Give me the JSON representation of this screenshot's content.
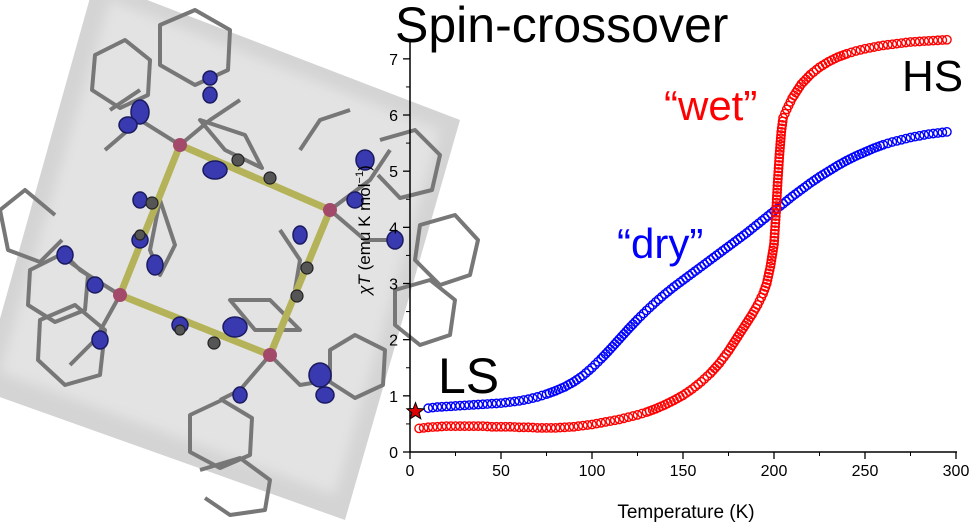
{
  "headline": "Spin-crossover",
  "chart_data": {
    "type": "scatter",
    "title": "Spin-crossover",
    "xlabel": "Temperature (K)",
    "ylabel": "χT (emu K mol⁻¹)",
    "ylabel_italic_part": "χT",
    "ylabel_unit_part": " (emu K mol",
    "ylabel_sup": "−1",
    "ylabel_close": ")",
    "xlim": [
      0,
      300
    ],
    "ylim": [
      0,
      7.3
    ],
    "xticks": [
      0,
      50,
      100,
      150,
      200,
      250,
      300
    ],
    "yticks": [
      0,
      1,
      2,
      3,
      4,
      5,
      6,
      7
    ],
    "grid": false,
    "series": [
      {
        "name": "“dry”",
        "color": "#0000ff",
        "marker": "open-circle",
        "x": [
          10,
          15,
          20,
          25,
          30,
          35,
          40,
          45,
          50,
          55,
          60,
          65,
          70,
          75,
          80,
          85,
          90,
          95,
          100,
          105,
          110,
          115,
          120,
          125,
          130,
          135,
          140,
          145,
          150,
          155,
          160,
          165,
          170,
          175,
          180,
          185,
          190,
          195,
          200,
          205,
          210,
          215,
          220,
          225,
          230,
          235,
          240,
          245,
          250,
          255,
          260,
          265,
          270,
          275,
          280,
          285,
          290,
          295
        ],
        "y": [
          0.78,
          0.8,
          0.81,
          0.82,
          0.83,
          0.84,
          0.85,
          0.86,
          0.87,
          0.89,
          0.91,
          0.94,
          0.98,
          1.03,
          1.09,
          1.16,
          1.25,
          1.36,
          1.5,
          1.66,
          1.83,
          2.01,
          2.19,
          2.36,
          2.52,
          2.67,
          2.81,
          2.94,
          3.06,
          3.18,
          3.3,
          3.42,
          3.54,
          3.66,
          3.78,
          3.9,
          4.03,
          4.16,
          4.29,
          4.42,
          4.55,
          4.67,
          4.79,
          4.9,
          5.0,
          5.1,
          5.19,
          5.27,
          5.34,
          5.41,
          5.47,
          5.52,
          5.56,
          5.6,
          5.63,
          5.66,
          5.68,
          5.7
        ]
      },
      {
        "name": "“wet”",
        "color": "#ff0000",
        "marker": "open-circle",
        "x": [
          5,
          10,
          15,
          20,
          25,
          30,
          35,
          40,
          45,
          50,
          55,
          60,
          65,
          70,
          75,
          80,
          85,
          90,
          95,
          100,
          105,
          110,
          115,
          120,
          125,
          130,
          135,
          140,
          145,
          150,
          155,
          160,
          165,
          170,
          175,
          180,
          185,
          188,
          191,
          194,
          196,
          198,
          200,
          201,
          202,
          203,
          204,
          205,
          207,
          210,
          215,
          220,
          225,
          230,
          235,
          240,
          245,
          250,
          255,
          260,
          265,
          270,
          275,
          280,
          285,
          290,
          295
        ],
        "y": [
          0.42,
          0.44,
          0.45,
          0.46,
          0.46,
          0.46,
          0.46,
          0.46,
          0.45,
          0.45,
          0.45,
          0.44,
          0.44,
          0.43,
          0.43,
          0.43,
          0.44,
          0.45,
          0.47,
          0.49,
          0.52,
          0.55,
          0.58,
          0.62,
          0.66,
          0.71,
          0.77,
          0.84,
          0.92,
          1.01,
          1.12,
          1.25,
          1.4,
          1.58,
          1.8,
          2.05,
          2.3,
          2.45,
          2.62,
          2.82,
          3.0,
          3.3,
          3.7,
          4.2,
          4.8,
          5.3,
          5.7,
          5.95,
          6.1,
          6.3,
          6.55,
          6.72,
          6.85,
          6.95,
          7.03,
          7.09,
          7.14,
          7.18,
          7.21,
          7.24,
          7.26,
          7.28,
          7.3,
          7.31,
          7.32,
          7.33,
          7.34
        ]
      }
    ],
    "annotations": {
      "hs": "HS",
      "ls": "LS",
      "wet": "“wet”",
      "dry": "“dry”"
    },
    "star": {
      "x": 3,
      "y": 0.72,
      "color": "#dd0000"
    }
  }
}
